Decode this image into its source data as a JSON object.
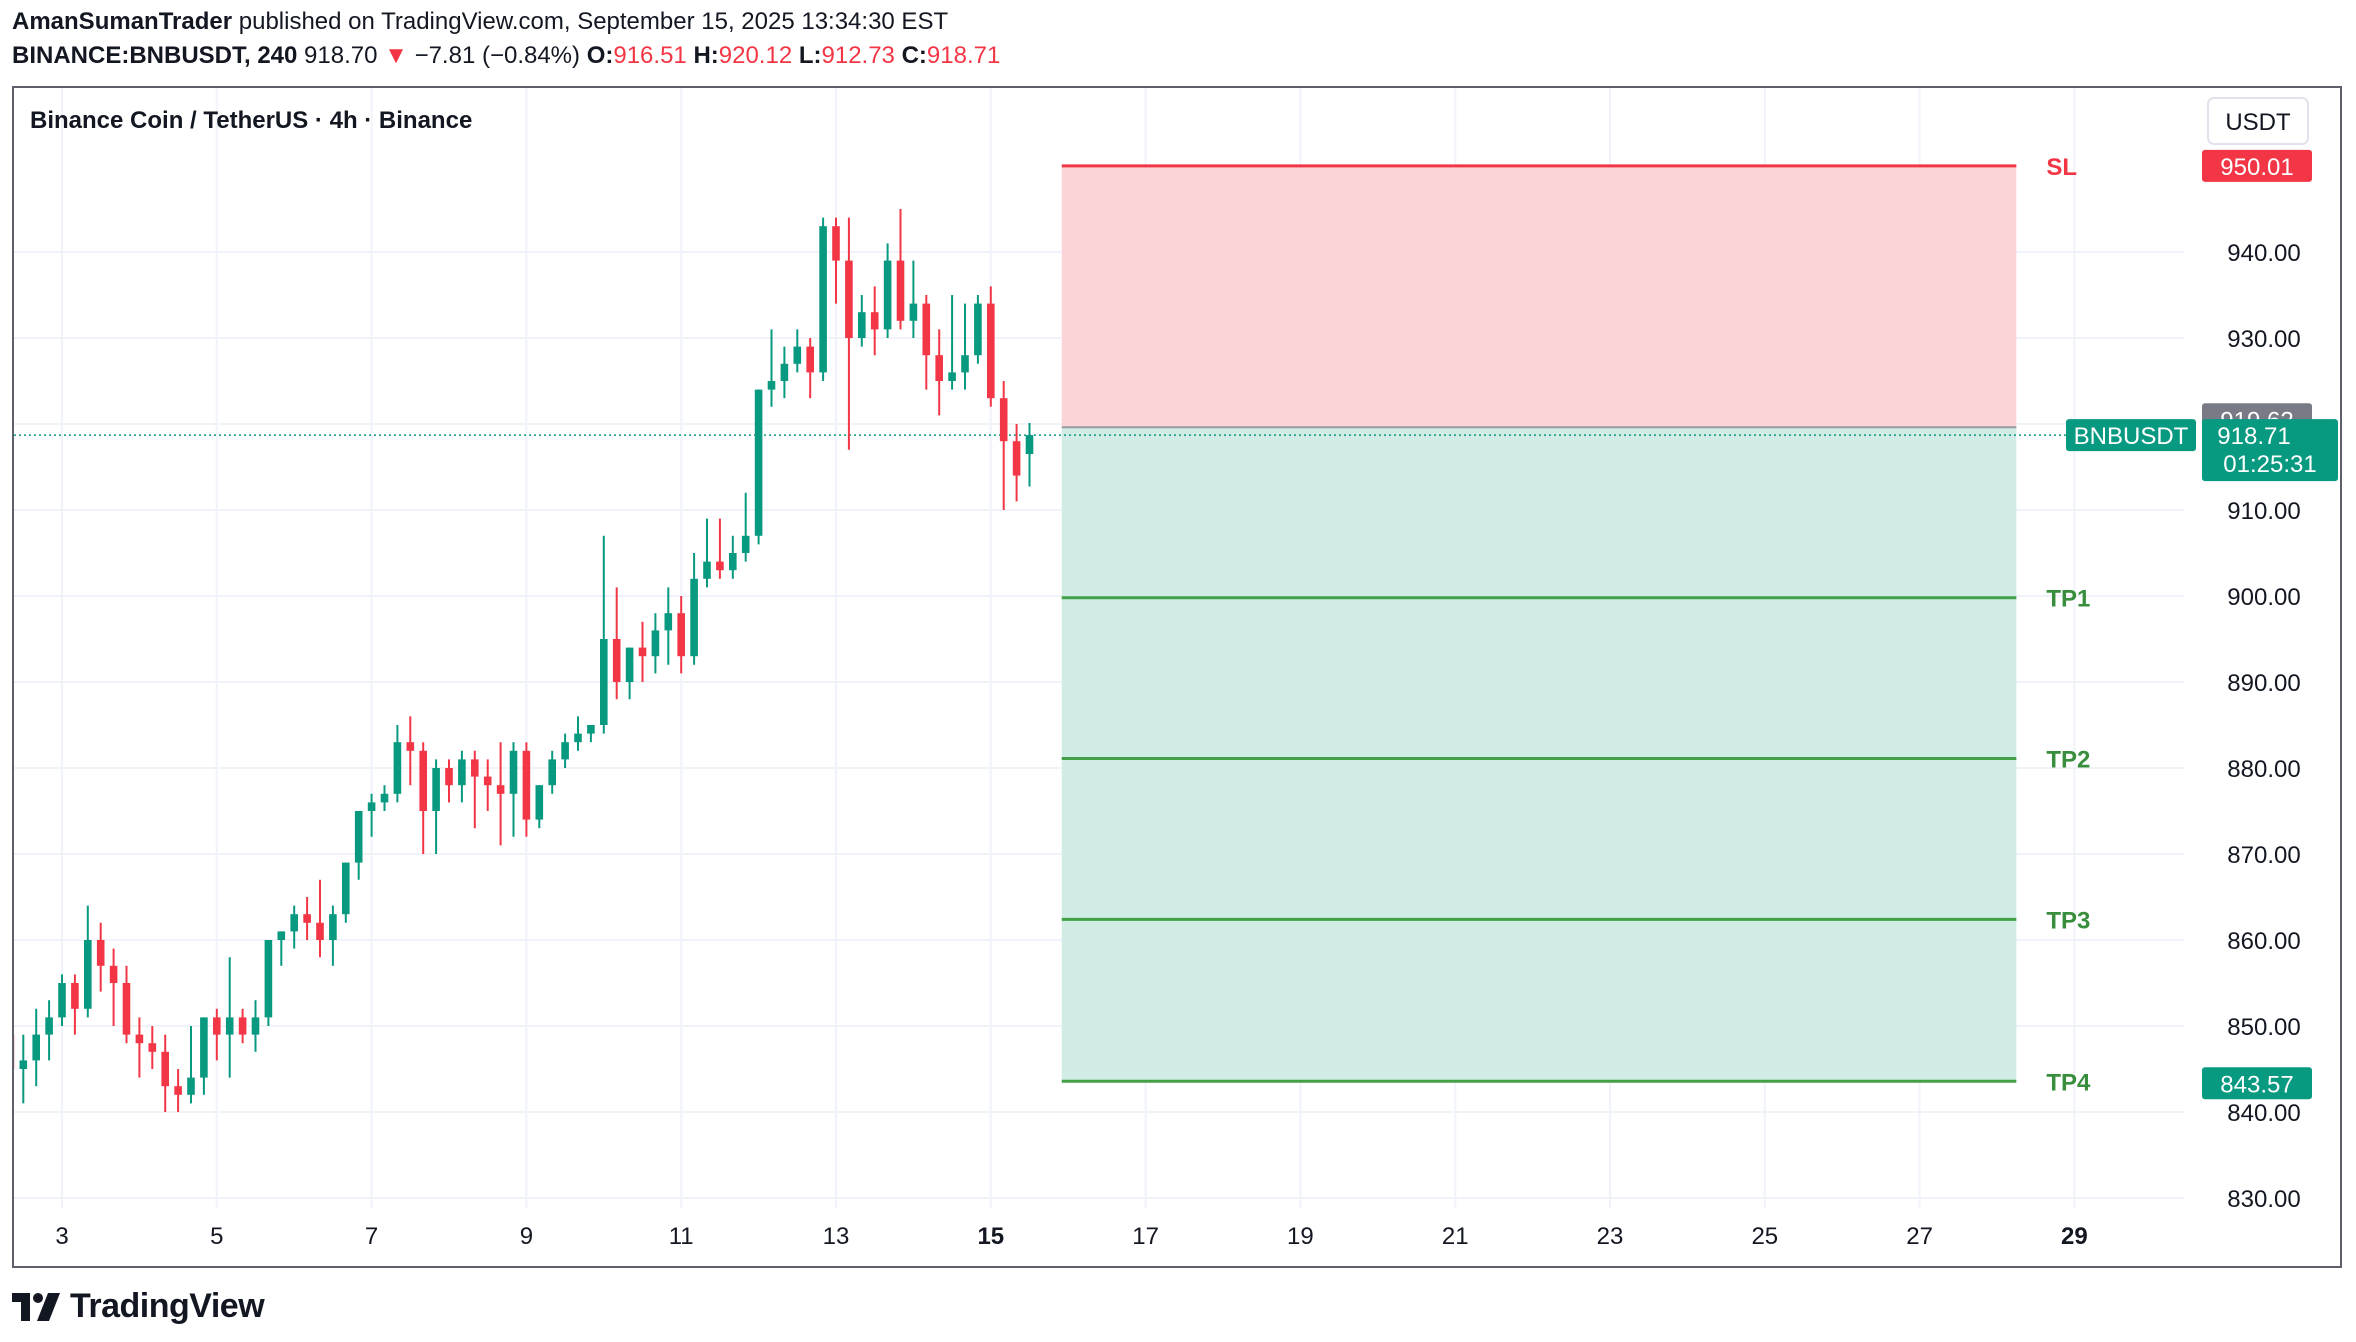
{
  "header": {
    "author": "AmanSumanTrader",
    "published": "published on TradingView.com, September 15, 2025 13:34:30 EST",
    "symbol": "BINANCE:BNBUSDT, 240",
    "price": "918.70",
    "change_arrow": "▼",
    "change": "−7.81 (−0.84%)",
    "o_label": "O:",
    "o_value": "916.51",
    "h_label": "H:",
    "h_value": "920.12",
    "l_label": "L:",
    "l_value": "912.73",
    "c_label": "C:",
    "c_value": "918.71"
  },
  "footer": {
    "brand": "TradingView",
    "logo_icon": "tradingview-logo-icon"
  },
  "chart_data": {
    "type": "candlestick",
    "title": "Binance Coin / TetherUS · 4h · Binance",
    "currency": "USDT",
    "ylim": [
      826,
      955
    ],
    "yticks": [
      830,
      840,
      850,
      860,
      870,
      880,
      890,
      900,
      910,
      920,
      930,
      940
    ],
    "ytick_labels": [
      "830.00",
      "840.00",
      "850.00",
      "860.00",
      "870.00",
      "880.00",
      "890.00",
      "900.00",
      "910.00",
      "920.00",
      "930.00",
      "940.00"
    ],
    "x_start": "2025-09-02 04:00",
    "xticks": [
      {
        "day": 3,
        "label": "3",
        "bold": false
      },
      {
        "day": 5,
        "label": "5",
        "bold": false
      },
      {
        "day": 7,
        "label": "7",
        "bold": false
      },
      {
        "day": 9,
        "label": "9",
        "bold": false
      },
      {
        "day": 11,
        "label": "11",
        "bold": false
      },
      {
        "day": 13,
        "label": "13",
        "bold": false
      },
      {
        "day": 15,
        "label": "15",
        "bold": true
      },
      {
        "day": 17,
        "label": "17",
        "bold": false
      },
      {
        "day": 19,
        "label": "19",
        "bold": false
      },
      {
        "day": 21,
        "label": "21",
        "bold": false
      },
      {
        "day": 23,
        "label": "23",
        "bold": false
      },
      {
        "day": 25,
        "label": "25",
        "bold": false
      },
      {
        "day": 27,
        "label": "27",
        "bold": false
      },
      {
        "day": 29,
        "label": "29",
        "bold": true
      }
    ],
    "ohlc": [
      [
        855,
        855,
        848,
        849
      ],
      [
        849,
        850,
        838,
        845
      ],
      [
        845,
        849,
        841,
        846
      ],
      [
        846,
        852,
        843,
        849
      ],
      [
        849,
        853,
        846,
        851
      ],
      [
        851,
        856,
        850,
        855
      ],
      [
        855,
        856,
        849,
        852
      ],
      [
        852,
        864,
        851,
        860
      ],
      [
        860,
        862,
        854,
        857
      ],
      [
        857,
        859,
        850,
        855
      ],
      [
        855,
        857,
        848,
        849
      ],
      [
        849,
        851,
        844,
        848
      ],
      [
        848,
        850,
        845,
        847
      ],
      [
        847,
        849,
        840,
        843
      ],
      [
        843,
        845,
        840,
        842
      ],
      [
        842,
        850,
        841,
        844
      ],
      [
        844,
        851,
        842,
        851
      ],
      [
        851,
        852,
        846,
        849
      ],
      [
        849,
        858,
        844,
        851
      ],
      [
        851,
        852,
        848,
        849
      ],
      [
        849,
        853,
        847,
        851
      ],
      [
        851,
        860,
        850,
        860
      ],
      [
        860,
        861,
        857,
        861
      ],
      [
        861,
        864,
        859,
        863
      ],
      [
        863,
        865,
        860,
        862
      ],
      [
        862,
        867,
        858,
        860
      ],
      [
        860,
        864,
        857,
        863
      ],
      [
        863,
        869,
        862,
        869
      ],
      [
        869,
        875,
        867,
        875
      ],
      [
        875,
        877,
        872,
        876
      ],
      [
        876,
        878,
        875,
        877
      ],
      [
        877,
        885,
        876,
        883
      ],
      [
        883,
        886,
        878,
        882
      ],
      [
        882,
        883,
        870,
        875
      ],
      [
        875,
        881,
        870,
        880
      ],
      [
        880,
        881,
        876,
        878
      ],
      [
        878,
        882,
        876,
        881
      ],
      [
        881,
        882,
        873,
        879
      ],
      [
        879,
        881,
        875,
        878
      ],
      [
        878,
        883,
        871,
        877
      ],
      [
        877,
        883,
        872,
        882
      ],
      [
        882,
        883,
        872,
        874
      ],
      [
        874,
        878,
        873,
        878
      ],
      [
        878,
        882,
        877,
        881
      ],
      [
        881,
        884,
        880,
        883
      ],
      [
        883,
        886,
        882,
        884
      ],
      [
        884,
        885,
        883,
        885
      ],
      [
        885,
        907,
        884,
        895
      ],
      [
        895,
        901,
        888,
        890
      ],
      [
        890,
        894,
        888,
        894
      ],
      [
        894,
        897,
        890,
        893
      ],
      [
        893,
        898,
        891,
        896
      ],
      [
        896,
        901,
        892,
        898
      ],
      [
        898,
        900,
        891,
        893
      ],
      [
        893,
        905,
        892,
        902
      ],
      [
        902,
        909,
        901,
        904
      ],
      [
        904,
        909,
        902,
        903
      ],
      [
        903,
        907,
        902,
        905
      ],
      [
        905,
        912,
        904,
        907
      ],
      [
        907,
        924,
        906,
        924
      ],
      [
        924,
        931,
        922,
        925
      ],
      [
        925,
        929,
        923,
        927
      ],
      [
        927,
        931,
        926,
        929
      ],
      [
        929,
        930,
        923,
        926
      ],
      [
        926,
        944,
        925,
        943
      ],
      [
        943,
        944,
        934,
        939
      ],
      [
        939,
        944,
        917,
        930
      ],
      [
        930,
        935,
        929,
        933
      ],
      [
        933,
        936,
        928,
        931
      ],
      [
        931,
        941,
        930,
        939
      ],
      [
        939,
        945,
        931,
        932
      ],
      [
        932,
        939,
        930,
        934
      ],
      [
        934,
        935,
        924,
        928
      ],
      [
        928,
        931,
        921,
        925
      ],
      [
        925,
        935,
        924,
        926
      ],
      [
        926,
        934,
        924,
        928
      ],
      [
        928,
        935,
        927,
        934
      ],
      [
        934,
        936,
        922,
        923
      ],
      [
        923,
        925,
        910,
        918
      ],
      [
        918,
        920,
        911,
        914
      ],
      [
        916.51,
        920.12,
        912.73,
        918.71
      ]
    ],
    "position": {
      "start": "2025-09-15 22:00",
      "end": "2025-09-28 06:00",
      "entry": 919.62,
      "stop": 950.01,
      "targets": [
        {
          "label": "TP1",
          "price": 899.8
        },
        {
          "label": "TP2",
          "price": 881.1
        },
        {
          "label": "TP3",
          "price": 862.4
        },
        {
          "label": "TP4",
          "price": 843.57
        }
      ],
      "stop_label": "SL"
    },
    "price_tags": {
      "sl": "950.01",
      "entry": "919.62",
      "last": "918.71",
      "countdown": "01:25:31",
      "symbol_tag": "BNBUSDT",
      "tp4": "843.57"
    },
    "last_price": 918.71,
    "colors": {
      "up": "#089981",
      "down": "#f23645",
      "sl_zone": "#fad4d7",
      "tp_zone": "#d0ece5",
      "sl_line": "#f23645",
      "tp_line": "#43a047",
      "tp_text": "#388e3c",
      "entry_tag": "#787b86",
      "last_tag": "#089981"
    }
  }
}
